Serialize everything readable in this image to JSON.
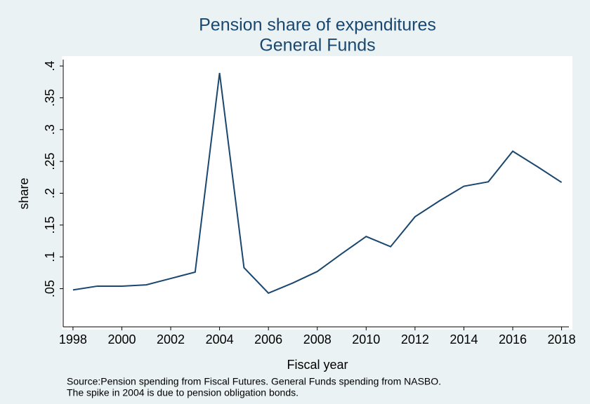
{
  "chart_data": {
    "type": "line",
    "title": "Pension share of expenditures",
    "subtitle": "General Funds",
    "x_label": "Fiscal year",
    "y_label": "share",
    "notes": [
      "Source:Pension spending from Fiscal Futures. General Funds spending from NASBO.",
      "The spike in 2004 is due to pension obligation bonds."
    ],
    "x": [
      1998,
      1999,
      2000,
      2001,
      2002,
      2003,
      2004,
      2005,
      2006,
      2007,
      2008,
      2009,
      2010,
      2011,
      2012,
      2013,
      2014,
      2015,
      2016,
      2017,
      2018
    ],
    "series": [
      {
        "name": "share",
        "color": "#1a476f",
        "values": [
          0.048,
          0.054,
          0.054,
          0.056,
          0.066,
          0.076,
          0.389,
          0.083,
          0.043,
          0.059,
          0.077,
          0.105,
          0.132,
          0.116,
          0.163,
          0.188,
          0.211,
          0.218,
          0.266,
          0.242,
          0.217
        ]
      }
    ],
    "xlim": [
      1997.6,
      2018.3
    ],
    "xticks": [
      1998,
      2000,
      2002,
      2004,
      2006,
      2008,
      2010,
      2012,
      2014,
      2016,
      2018
    ],
    "ylim": [
      -0.01,
      0.41
    ],
    "yticks": [
      {
        "value": 0.05,
        "label": ".05"
      },
      {
        "value": 0.1,
        "label": ".1"
      },
      {
        "value": 0.15,
        "label": ".15"
      },
      {
        "value": 0.2,
        "label": ".2"
      },
      {
        "value": 0.25,
        "label": ".25"
      },
      {
        "value": 0.3,
        "label": ".3"
      },
      {
        "value": 0.35,
        "label": ".35"
      },
      {
        "value": 0.4,
        "label": ".4"
      }
    ],
    "grid": false
  }
}
